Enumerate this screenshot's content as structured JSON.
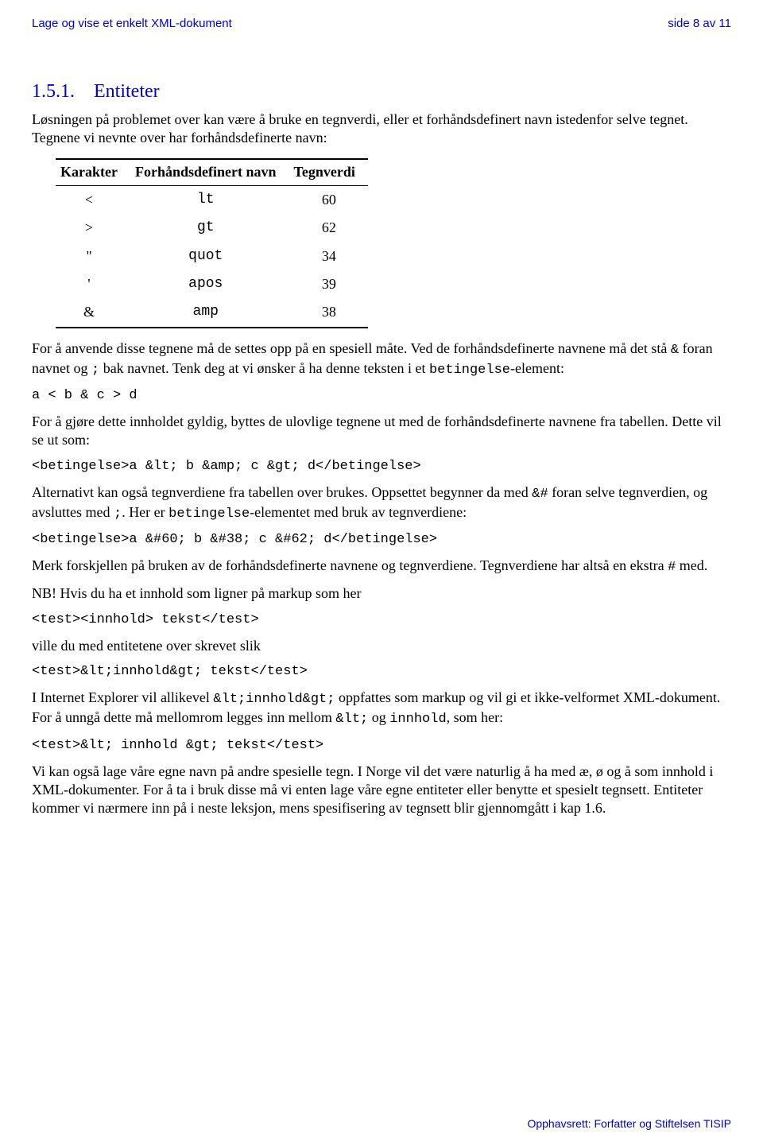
{
  "header": {
    "left": "Lage og vise et enkelt XML-dokument",
    "right": "side 8 av 11"
  },
  "section": {
    "number": "1.5.1.",
    "title": "Entiteter"
  },
  "p1": "Løsningen på problemet over kan være å bruke en tegnverdi, eller et forhåndsdefinert navn istedenfor selve tegnet. Tegnene vi nevnte over har forhåndsdefinerte navn:",
  "table": {
    "h1": "Karakter",
    "h2": "Forhåndsdefinert navn",
    "h3": "Tegnverdi",
    "r1c1": "<",
    "r1c2": "lt",
    "r1c3": "60",
    "r2c1": ">",
    "r2c2": "gt",
    "r2c3": "62",
    "r3c1": "\"",
    "r3c2": "quot",
    "r3c3": "34",
    "r4c1": "'",
    "r4c2": "apos",
    "r4c3": "39",
    "r5c1": "&",
    "r5c2": "amp",
    "r5c3": "38"
  },
  "p2a": "For å anvende disse tegnene må de settes opp på en spesiell måte. Ved de forhåndsdefinerte navnene må det stå ",
  "p2b": " foran navnet og ",
  "p2c": " bak navnet. Tenk deg at vi ønsker å ha denne teksten i et ",
  "p2d": "-element:",
  "m_amp": "&",
  "m_semi": ";",
  "m_betingelse": "betingelse",
  "code1": "a < b & c > d",
  "p3": "For å gjøre dette innholdet gyldig, byttes de ulovlige tegnene ut med de forhåndsdefinerte navnene fra tabellen. Dette vil se ut som:",
  "code2": "<betingelse>a &lt; b &amp; c &gt; d</betingelse>",
  "p4a": "Alternativt kan også tegnverdiene fra tabellen over brukes. Oppsettet begynner da med ",
  "m_hashamp": "&#",
  "p4b": " foran selve tegnverdien, og avsluttes med ",
  "p4c": ". Her er ",
  "p4d": "-elementet med bruk av tegnverdiene:",
  "code3": "<betingelse>a &#60; b &#38; c &#62; d</betingelse>",
  "p5a": "Merk forskjellen på bruken av de forhåndsdefinerte navnene og tegnverdiene. Tegnverdiene har altså en ekstra ",
  "m_hash": "#",
  "p5b": " med.",
  "p6": "NB! Hvis du ha et innhold som ligner på markup som her",
  "code4": "<test><innhold> tekst</test>",
  "p7": "ville du med entitetene over skrevet slik",
  "code5": "<test>&lt;innhold&gt; tekst</test>",
  "p8a": "I Internet Explorer vil allikevel ",
  "m_ltinn": "&lt;innhold&gt;",
  "p8b": " oppfattes som markup og vil gi et ikke-velformet XML-dokument. For å unngå dette må mellomrom legges inn mellom ",
  "m_lt": "&lt;",
  "p8c": " og ",
  "m_innhold": "innhold",
  "p8d": ", som her:",
  "code6": "<test>&lt; innhold &gt; tekst</test>",
  "p9": "Vi kan også lage våre egne navn på andre spesielle tegn. I Norge vil det være naturlig å ha med æ, ø og å som innhold i XML-dokumenter. For å ta i bruk disse må vi enten lage våre egne entiteter eller benytte et spesielt tegnsett. Entiteter kommer vi nærmere inn på i neste leksjon, mens spesifisering av tegnsett blir gjennomgått i kap 1.6.",
  "footer": "Opphavsrett:  Forfatter og Stiftelsen TISIP"
}
